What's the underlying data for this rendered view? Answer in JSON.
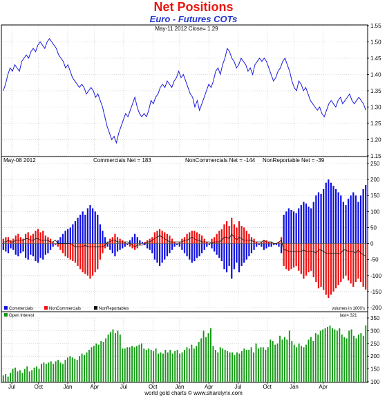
{
  "header": {
    "title": "Net Positions",
    "subtitle": "Euro - Futures COTs"
  },
  "footer": {
    "credit": "world gold charts © www.sharelynx.com"
  },
  "chart_data": [
    {
      "type": "line",
      "panel": "price",
      "annotation": "May-11  2012   Close= 1.29",
      "ylim": [
        1.15,
        1.55
      ],
      "yticks": [
        1.15,
        1.2,
        1.25,
        1.3,
        1.35,
        1.4,
        1.45,
        1.5,
        1.55
      ],
      "color": "#1a1adc",
      "grid": true,
      "series": [
        {
          "values": [
            1.35,
            1.37,
            1.4,
            1.42,
            1.41,
            1.43,
            1.42,
            1.41,
            1.44,
            1.45,
            1.46,
            1.45,
            1.47,
            1.48,
            1.47,
            1.49,
            1.5,
            1.49,
            1.48,
            1.5,
            1.51,
            1.5,
            1.49,
            1.48,
            1.46,
            1.45,
            1.44,
            1.42,
            1.43,
            1.41,
            1.39,
            1.38,
            1.37,
            1.36,
            1.37,
            1.36,
            1.34,
            1.35,
            1.36,
            1.35,
            1.33,
            1.34,
            1.32,
            1.3,
            1.27,
            1.24,
            1.22,
            1.2,
            1.21,
            1.19,
            1.22,
            1.24,
            1.26,
            1.28,
            1.27,
            1.29,
            1.31,
            1.33,
            1.3,
            1.28,
            1.27,
            1.28,
            1.27,
            1.29,
            1.32,
            1.31,
            1.33,
            1.34,
            1.36,
            1.37,
            1.36,
            1.38,
            1.37,
            1.36,
            1.38,
            1.39,
            1.41,
            1.39,
            1.4,
            1.38,
            1.36,
            1.34,
            1.33,
            1.3,
            1.32,
            1.29,
            1.31,
            1.33,
            1.35,
            1.37,
            1.36,
            1.38,
            1.41,
            1.42,
            1.4,
            1.43,
            1.45,
            1.48,
            1.47,
            1.45,
            1.44,
            1.42,
            1.43,
            1.45,
            1.44,
            1.43,
            1.41,
            1.42,
            1.4,
            1.43,
            1.44,
            1.45,
            1.44,
            1.45,
            1.44,
            1.42,
            1.4,
            1.38,
            1.39,
            1.41,
            1.42,
            1.44,
            1.45,
            1.43,
            1.41,
            1.38,
            1.36,
            1.35,
            1.38,
            1.37,
            1.35,
            1.36,
            1.34,
            1.32,
            1.31,
            1.3,
            1.29,
            1.3,
            1.28,
            1.27,
            1.29,
            1.31,
            1.32,
            1.31,
            1.3,
            1.32,
            1.33,
            1.31,
            1.32,
            1.33,
            1.34,
            1.32,
            1.31,
            1.32,
            1.33,
            1.32,
            1.31,
            1.29
          ]
        }
      ]
    },
    {
      "type": "bar",
      "panel": "net-positions",
      "annotation_date": "May-08  2012",
      "annotation_commercials": "Commercials Net = 183",
      "annotation_noncommercials": "NonCommercials Net = -144",
      "annotation_nonreportable": "NonReportable Net = -39",
      "ylim": [
        -200,
        250
      ],
      "yticks": [
        -200,
        -150,
        -100,
        -50,
        0,
        50,
        100,
        150,
        200,
        250
      ],
      "grid": true,
      "legend": [
        "Commercials",
        "NonCommercials",
        "NonReportables"
      ],
      "legend_colors": [
        "#1010e0",
        "#ee1111",
        "#111111"
      ],
      "legend_note": "volumes in 1000's",
      "series": [
        {
          "name": "Commercials",
          "color": "#1010e0",
          "values": [
            -20,
            -25,
            -30,
            -15,
            -20,
            -35,
            -40,
            -30,
            -25,
            -45,
            -50,
            -35,
            -40,
            -55,
            -60,
            -45,
            -50,
            -35,
            -30,
            -20,
            -10,
            -5,
            10,
            20,
            30,
            40,
            45,
            50,
            60,
            70,
            80,
            90,
            100,
            90,
            110,
            120,
            110,
            100,
            90,
            60,
            40,
            20,
            -10,
            -20,
            -30,
            -40,
            -25,
            -20,
            -15,
            -10,
            -5,
            10,
            20,
            30,
            20,
            10,
            5,
            -5,
            -15,
            -20,
            -30,
            -50,
            -60,
            -70,
            -60,
            -50,
            -40,
            -30,
            -20,
            -10,
            -5,
            -10,
            -20,
            -30,
            -40,
            -50,
            -60,
            -55,
            -45,
            -40,
            -30,
            -20,
            -10,
            -5,
            -15,
            -25,
            -35,
            -45,
            -55,
            -80,
            -90,
            -70,
            -110,
            -80,
            -60,
            -90,
            -70,
            -60,
            -50,
            -40,
            -30,
            -20,
            -10,
            -5,
            -10,
            -20,
            -15,
            -10,
            -10,
            -5,
            -5,
            -10,
            -30,
            90,
            100,
            110,
            105,
            100,
            95,
            110,
            120,
            130,
            125,
            115,
            110,
            130,
            150,
            160,
            155,
            170,
            190,
            200,
            190,
            180,
            170,
            160,
            150,
            130,
            120,
            140,
            150,
            160,
            150,
            130,
            150,
            170,
            183
          ]
        },
        {
          "name": "NonCommercials",
          "color": "#ee1111",
          "values": [
            15,
            20,
            20,
            10,
            15,
            25,
            30,
            20,
            15,
            30,
            35,
            25,
            30,
            40,
            45,
            35,
            40,
            25,
            20,
            15,
            5,
            -5,
            -10,
            -20,
            -30,
            -40,
            -45,
            -50,
            -55,
            -60,
            -70,
            -80,
            -90,
            -95,
            -100,
            -110,
            -100,
            -90,
            -80,
            -50,
            -30,
            -15,
            5,
            15,
            20,
            30,
            20,
            15,
            10,
            5,
            0,
            -10,
            -15,
            -20,
            -15,
            -5,
            0,
            5,
            10,
            15,
            20,
            35,
            40,
            45,
            40,
            35,
            30,
            25,
            15,
            5,
            0,
            5,
            15,
            20,
            30,
            35,
            40,
            40,
            35,
            30,
            25,
            15,
            5,
            0,
            15,
            20,
            30,
            40,
            45,
            60,
            70,
            55,
            80,
            60,
            50,
            70,
            55,
            50,
            40,
            30,
            20,
            15,
            5,
            0,
            5,
            10,
            10,
            5,
            5,
            0,
            0,
            5,
            20,
            -70,
            -80,
            -85,
            -80,
            -75,
            -70,
            -85,
            -95,
            -110,
            -100,
            -90,
            -85,
            -105,
            -120,
            -140,
            -135,
            -145,
            -160,
            -170,
            -160,
            -150,
            -140,
            -130,
            -120,
            -110,
            -100,
            -115,
            -125,
            -135,
            -120,
            -110,
            -120,
            -135,
            -144
          ]
        }
      ],
      "nonreportable_line": {
        "name": "NonReportables",
        "color": "#111111",
        "values": [
          5,
          5,
          10,
          5,
          5,
          10,
          10,
          10,
          10,
          15,
          15,
          10,
          10,
          15,
          15,
          10,
          10,
          10,
          10,
          5,
          5,
          10,
          0,
          0,
          0,
          0,
          0,
          0,
          -5,
          -10,
          -10,
          -10,
          -10,
          -5,
          -10,
          -10,
          -10,
          -10,
          -10,
          -10,
          -10,
          -5,
          5,
          5,
          10,
          10,
          5,
          5,
          5,
          5,
          5,
          0,
          -5,
          -10,
          -5,
          -5,
          -5,
          0,
          5,
          5,
          10,
          15,
          20,
          25,
          20,
          15,
          10,
          5,
          5,
          5,
          5,
          5,
          5,
          10,
          10,
          15,
          20,
          15,
          10,
          10,
          5,
          5,
          5,
          5,
          0,
          5,
          5,
          5,
          10,
          20,
          20,
          15,
          30,
          20,
          10,
          20,
          15,
          10,
          10,
          10,
          10,
          5,
          5,
          5,
          5,
          10,
          5,
          5,
          5,
          0,
          0,
          5,
          10,
          -20,
          -20,
          -25,
          -25,
          -25,
          -25,
          -25,
          -25,
          -20,
          -25,
          -25,
          -25,
          -25,
          -30,
          -20,
          -20,
          -25,
          -30,
          -30,
          -30,
          -30,
          -30,
          -30,
          -30,
          -20,
          -20,
          -25,
          -25,
          -25,
          -30,
          -20,
          -30,
          -35,
          -39
        ]
      }
    },
    {
      "type": "bar",
      "panel": "open-interest",
      "legend": [
        "Open Interest"
      ],
      "legend_colors": [
        "#119911"
      ],
      "annotation_last": "last= 321",
      "ylim": [
        100,
        350
      ],
      "yticks": [
        100,
        150,
        200,
        250,
        300,
        350
      ],
      "grid": true,
      "series": [
        {
          "name": "Open Interest",
          "color": "#119911",
          "values": [
            125,
            130,
            120,
            135,
            150,
            155,
            140,
            145,
            135,
            150,
            160,
            140,
            145,
            155,
            160,
            150,
            170,
            175,
            170,
            175,
            180,
            170,
            180,
            185,
            175,
            170,
            185,
            195,
            200,
            195,
            190,
            185,
            200,
            210,
            205,
            215,
            225,
            235,
            240,
            250,
            245,
            260,
            255,
            270,
            285,
            295,
            305,
            290,
            300,
            285,
            230,
            230,
            235,
            235,
            240,
            235,
            240,
            245,
            250,
            230,
            225,
            230,
            225,
            220,
            230,
            210,
            215,
            210,
            225,
            215,
            225,
            210,
            220,
            225,
            210,
            215,
            225,
            235,
            230,
            245,
            230,
            240,
            255,
            270,
            300,
            275,
            290,
            310,
            240,
            225,
            215,
            235,
            230,
            225,
            220,
            215,
            215,
            205,
            215,
            210,
            220,
            230,
            225,
            225,
            235,
            215,
            250,
            230,
            235,
            235,
            225,
            235,
            265,
            260,
            245,
            250,
            280,
            265,
            275,
            265,
            300,
            260,
            245,
            235,
            250,
            240,
            235,
            245,
            265,
            275,
            260,
            290,
            285,
            300,
            305,
            310,
            315,
            320,
            310,
            305,
            300,
            310,
            285,
            275,
            270,
            300,
            305,
            280,
            270,
            285,
            290,
            280,
            321
          ]
        }
      ]
    }
  ],
  "x_axis": {
    "labels": [
      "Jul",
      "Oct",
      "Jan",
      "Apr",
      "Jul",
      "Oct",
      "Jan",
      "Apr",
      "Jul",
      "Oct",
      "Jan",
      "Apr"
    ],
    "label_positions": [
      4,
      15,
      27,
      38,
      50,
      62,
      73,
      85,
      97,
      109,
      120,
      132
    ]
  }
}
